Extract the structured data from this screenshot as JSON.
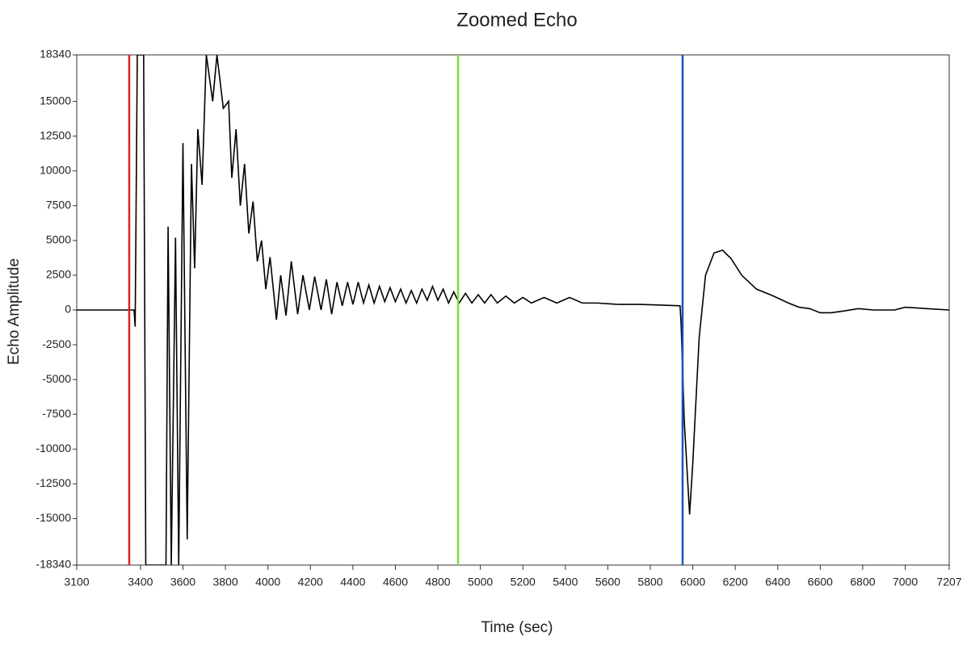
{
  "chart_data": {
    "type": "line",
    "title": "Zoomed Echo",
    "x_label": "Time (sec)",
    "y_label": "Echo Amplitude",
    "color": "#000000",
    "x": [
      3100,
      3370,
      3375,
      3385,
      3415,
      3425,
      3520,
      3530,
      3545,
      3565,
      3580,
      3600,
      3620,
      3640,
      3655,
      3670,
      3690,
      3710,
      3740,
      3760,
      3790,
      3815,
      3830,
      3850,
      3870,
      3890,
      3910,
      3930,
      3950,
      3970,
      3990,
      4010,
      4040,
      4060,
      4085,
      4110,
      4140,
      4165,
      4195,
      4220,
      4250,
      4275,
      4300,
      4325,
      4350,
      4375,
      4400,
      4425,
      4450,
      4475,
      4500,
      4525,
      4550,
      4575,
      4600,
      4625,
      4650,
      4675,
      4700,
      4725,
      4750,
      4775,
      4800,
      4825,
      4850,
      4875,
      4900,
      4930,
      4960,
      4990,
      5020,
      5050,
      5080,
      5120,
      5160,
      5200,
      5240,
      5300,
      5360,
      5420,
      5480,
      5550,
      5650,
      5750,
      5850,
      5940,
      5945,
      5960,
      5985,
      6000,
      6030,
      6060,
      6100,
      6140,
      6180,
      6230,
      6300,
      6380,
      6450,
      6500,
      6550,
      6600,
      6650,
      6700,
      6780,
      6850,
      6950,
      7000,
      7100,
      7207
    ],
    "values": [
      0,
      0,
      -1200,
      18340,
      18340,
      -18340,
      -18340,
      6000,
      -18340,
      5200,
      -18340,
      12000,
      -16500,
      10500,
      3000,
      13000,
      9000,
      18340,
      15000,
      18340,
      14500,
      15000,
      9500,
      13000,
      7500,
      10500,
      5500,
      7800,
      3500,
      5000,
      1500,
      3800,
      -700,
      2500,
      -400,
      3500,
      -300,
      2500,
      0,
      2400,
      0,
      2200,
      -300,
      2000,
      300,
      2000,
      400,
      2000,
      500,
      1800,
      500,
      1700,
      600,
      1600,
      600,
      1500,
      500,
      1400,
      500,
      1500,
      700,
      1700,
      700,
      1500,
      500,
      1300,
      500,
      1200,
      500,
      1100,
      500,
      1100,
      500,
      1000,
      500,
      900,
      500,
      900,
      500,
      900,
      500,
      500,
      400,
      400,
      350,
      300,
      -1000,
      -8000,
      -14700,
      -11000,
      -2000,
      2500,
      4100,
      4300,
      3700,
      2500,
      1500,
      1000,
      500,
      200,
      100,
      -200,
      -200,
      -100,
      100,
      0,
      0,
      200,
      100,
      0
    ],
    "cursors": [
      {
        "x": 3347,
        "color": "#e02020"
      },
      {
        "x": 4895,
        "color": "#7ee03a"
      },
      {
        "x": 5952,
        "color": "#1f4fc0"
      }
    ],
    "xlim": [
      3100,
      7207
    ],
    "ylim": [
      -18340,
      18340
    ],
    "xticks": [
      3100,
      3400,
      3600,
      3800,
      4000,
      4200,
      4400,
      4600,
      4800,
      5000,
      5200,
      5400,
      5600,
      5800,
      6000,
      6200,
      6400,
      6600,
      6800,
      7000,
      7207
    ],
    "yticks": [
      18340,
      15000,
      12500,
      10000,
      7500,
      5000,
      2500,
      0,
      -2500,
      -5000,
      -7500,
      -10000,
      -12500,
      -15000,
      -18340
    ],
    "grid": false
  }
}
